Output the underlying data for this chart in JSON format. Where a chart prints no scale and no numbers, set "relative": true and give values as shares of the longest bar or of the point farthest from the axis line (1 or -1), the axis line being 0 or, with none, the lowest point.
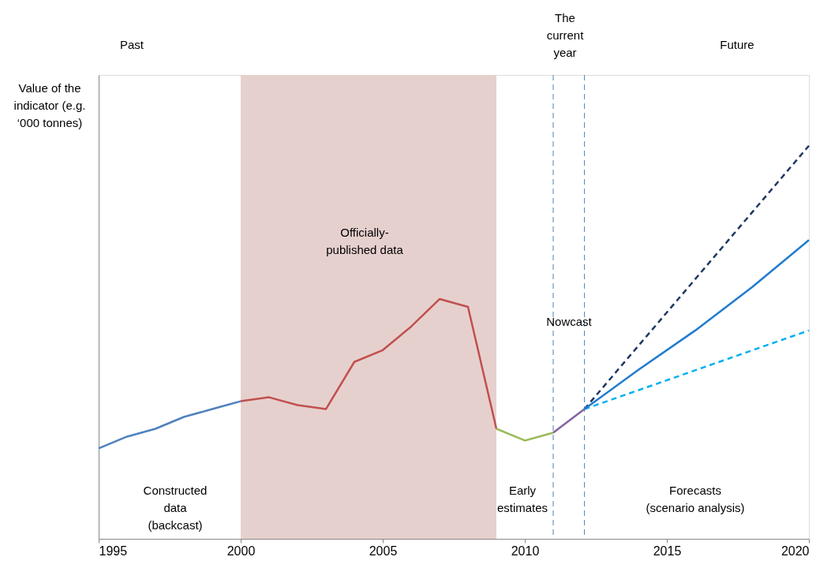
{
  "chart_data": {
    "type": "line",
    "relative": true,
    "ylabel": "Value of the\nindicator (e.g.\n‘000 tonnes)",
    "xlim": [
      1995,
      2020
    ],
    "xticks": [
      1995,
      2000,
      2005,
      2010,
      2015,
      2020
    ],
    "tick_labels": "x",
    "grid": false,
    "legend": false,
    "series": [
      {
        "color": "#4f81bd",
        "x": [
          1995,
          1996,
          1997,
          1998,
          1999,
          2000
        ],
        "values": [
          0.23,
          0.26,
          0.28,
          0.31,
          0.33,
          0.35
        ],
        "line_style": "solid"
      },
      {
        "color": "#c0504d",
        "x": [
          2000,
          2001,
          2002,
          2003,
          2004,
          2005,
          2006,
          2007,
          2008,
          2009
        ],
        "values": [
          0.35,
          0.36,
          0.34,
          0.33,
          0.45,
          0.48,
          0.54,
          0.61,
          0.59,
          0.28
        ],
        "line_style": "solid"
      },
      {
        "color": "#9bbb59",
        "x": [
          2009,
          2010,
          2011
        ],
        "values": [
          0.28,
          0.25,
          0.27
        ],
        "line_style": "solid"
      },
      {
        "color": "#8064a2",
        "x": [
          2011,
          2012.1
        ],
        "values": [
          0.27,
          0.33
        ],
        "line_style": "solid"
      },
      {
        "color": "#1f3864",
        "x": [
          2012.1,
          2020
        ],
        "values": [
          0.33,
          1.0
        ],
        "line_style": "dashed"
      },
      {
        "color": "#00b0f0",
        "x": [
          2012.1,
          2020
        ],
        "values": [
          0.33,
          0.53
        ],
        "line_style": "dashed"
      },
      {
        "color": "#1f7bd0",
        "x": [
          2012.1,
          2014,
          2016,
          2018,
          2020
        ],
        "values": [
          0.33,
          0.43,
          0.53,
          0.64,
          0.76
        ],
        "line_style": "solid"
      }
    ],
    "bands": [
      {
        "axis": "x",
        "from": 2000,
        "to": 2009,
        "color": "#e6d0ce"
      }
    ],
    "ref_lines": [
      {
        "axis": "x",
        "value": 2011,
        "color": "#4f81bd",
        "line_style": "dashed"
      },
      {
        "axis": "x",
        "value": 2012.1,
        "color": "#4f81bd",
        "line_style": "dashed"
      }
    ],
    "annotations": [
      "Past",
      "The\ncurrent\nyear",
      "Future",
      "Officially-\npublished data",
      "Nowcast",
      "Constructed\ndata\n(backcast)",
      "Early\nestimates",
      "Forecasts\n(scenario analysis)"
    ]
  }
}
